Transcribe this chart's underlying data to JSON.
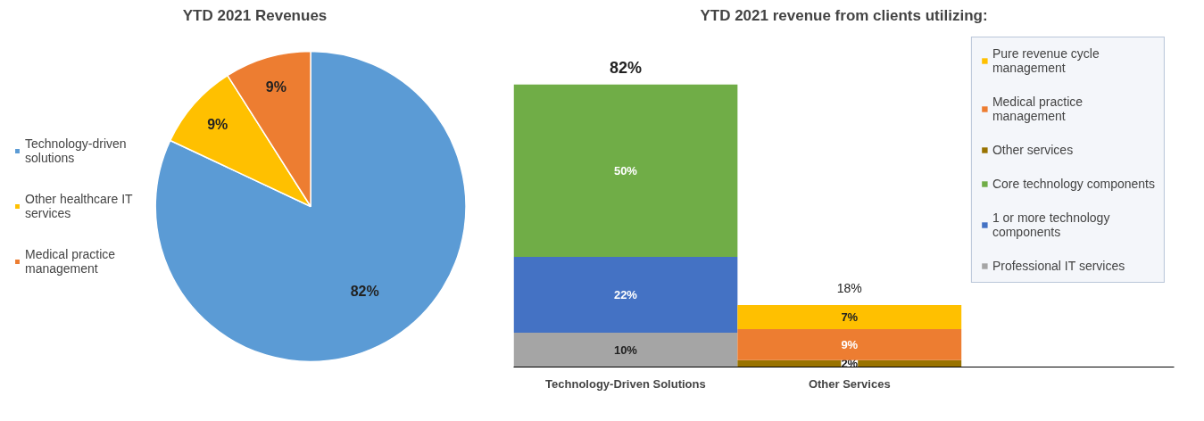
{
  "chart_data": [
    {
      "type": "pie",
      "title": "YTD 2021 Revenues",
      "categories": [
        "Technology-driven solutions",
        "Other healthcare IT services",
        "Medical practice management"
      ],
      "values": [
        82,
        9,
        9
      ],
      "colors": [
        "#5b9bd5",
        "#ffc000",
        "#ed7d31"
      ],
      "value_labels": [
        "82%",
        "9%",
        "9%"
      ],
      "legend": "left"
    },
    {
      "type": "bar",
      "title": "YTD 2021 revenue from clients utilizing:",
      "categories": [
        "Technology-Driven Solutions",
        "Other Services"
      ],
      "stacked": true,
      "legend": "right",
      "tick_labels": "x",
      "totals": [
        "82%",
        "18%"
      ],
      "series": [
        {
          "name": "Professional IT services",
          "color": "#a5a5a5",
          "values": [
            10,
            null
          ],
          "value_labels": [
            "10%",
            null
          ]
        },
        {
          "name": "1 or more technology components",
          "color": "#4472c4",
          "values": [
            22,
            null
          ],
          "value_labels": [
            "22%",
            null
          ]
        },
        {
          "name": "Core technology components",
          "color": "#70ad47",
          "values": [
            50,
            null
          ],
          "value_labels": [
            "50%",
            null
          ]
        },
        {
          "name": "Other services",
          "color": "#997300",
          "values": [
            null,
            2
          ],
          "value_labels": [
            null,
            "2%"
          ]
        },
        {
          "name": "Medical practice management",
          "color": "#ed7d31",
          "values": [
            null,
            9
          ],
          "value_labels": [
            null,
            "9%"
          ]
        },
        {
          "name": "Pure revenue cycle management",
          "color": "#ffc000",
          "values": [
            null,
            7
          ],
          "value_labels": [
            null,
            "7%"
          ]
        }
      ]
    }
  ]
}
